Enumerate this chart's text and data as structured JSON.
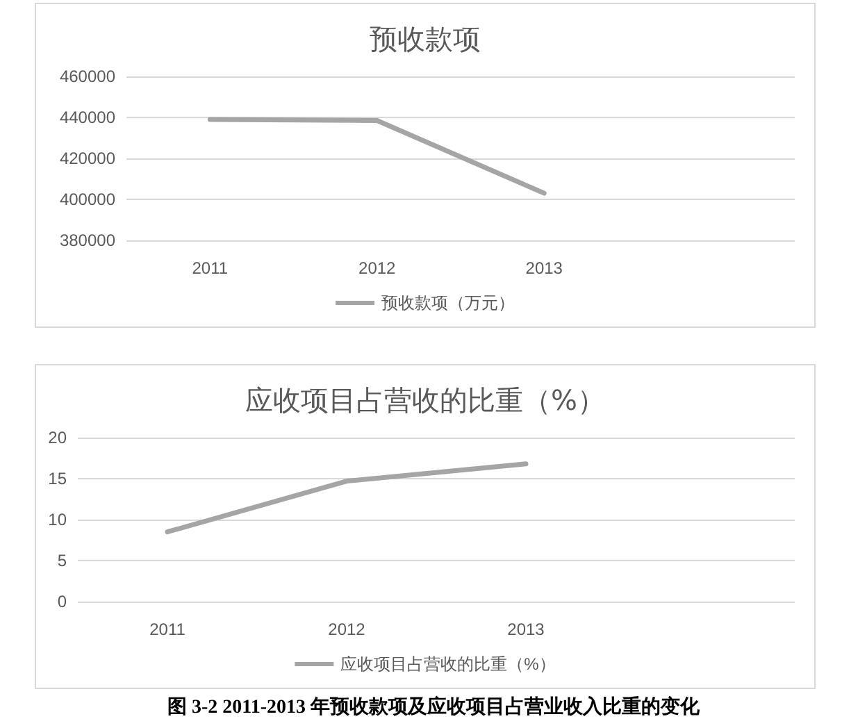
{
  "chart_data": [
    {
      "type": "line",
      "title": "预收款项",
      "categories": [
        "2011",
        "2012",
        "2013",
        null
      ],
      "series": [
        {
          "name": "预收款项（万元）",
          "color": "#a5a5a5",
          "values": [
            439000,
            438500,
            403000,
            null
          ]
        }
      ],
      "ylim": [
        380000,
        460000
      ],
      "yticks": [
        380000,
        400000,
        420000,
        440000,
        460000
      ],
      "grid": "y",
      "legend": "bottom",
      "marker": "none",
      "line_style": "solid"
    },
    {
      "type": "line",
      "title": "应收项目占营收的比重（%）",
      "categories": [
        "2011",
        "2012",
        "2013",
        null
      ],
      "series": [
        {
          "name": "应收项目占营收的比重（%）",
          "color": "#a5a5a5",
          "values": [
            8.5,
            14.7,
            16.8,
            null
          ]
        }
      ],
      "ylim": [
        0,
        20
      ],
      "yticks": [
        0,
        5,
        10,
        15,
        20
      ],
      "grid": "y",
      "legend": "bottom",
      "marker": "none",
      "line_style": "solid",
      "annotations": [
        "图 3-2 2011-2013 年预收款项及应收项目占营业收入比重的变化"
      ]
    }
  ]
}
